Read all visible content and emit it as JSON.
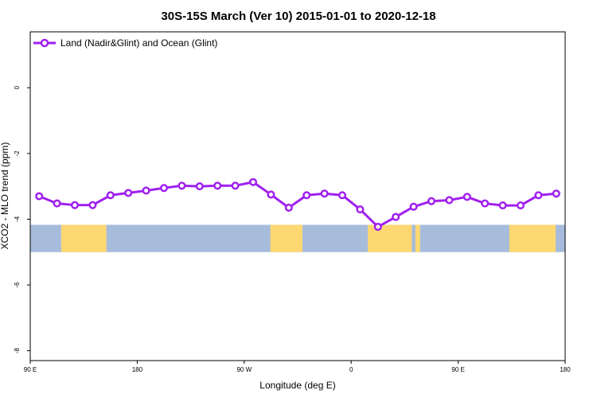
{
  "chart_data": {
    "type": "line",
    "title": "30S-15S March (Ver 10)   2015-01-01 to 2020-12-18",
    "xlabel": "Longitude (deg E)",
    "ylabel": "XCO2 - MLO trend (ppm)",
    "xlim": [
      90,
      540
    ],
    "ylim": [
      -8.3,
      1.7
    ],
    "x_ticks": [
      {
        "value": 90,
        "label": "90 E"
      },
      {
        "value": 180,
        "label": "180"
      },
      {
        "value": 270,
        "label": "90 W"
      },
      {
        "value": 360,
        "label": "0"
      },
      {
        "value": 450,
        "label": "90 E"
      },
      {
        "value": 540,
        "label": "180"
      }
    ],
    "y_ticks": [
      {
        "value": 0,
        "label": "0"
      },
      {
        "value": -2,
        "label": "-2"
      },
      {
        "value": -4,
        "label": "-4"
      },
      {
        "value": -6,
        "label": "-6"
      },
      {
        "value": -8,
        "label": "-8"
      }
    ],
    "grid": false,
    "legend_position": "top-left",
    "series": [
      {
        "name": "Land (Nadir&Glint) and Ocean (Glint)",
        "color": "#a020f0",
        "x": [
          97.5,
          112.5,
          127.5,
          142.5,
          157.5,
          172.5,
          187.5,
          202.5,
          217.5,
          232.5,
          247.5,
          262.5,
          277.5,
          292.5,
          307.5,
          322.5,
          337.5,
          352.5,
          367.5,
          382.5,
          397.5,
          412.5,
          427.5,
          442.5,
          457.5,
          472.5,
          487.5,
          502.5,
          517.5,
          532.5
        ],
        "values": [
          -3.3,
          -3.52,
          -3.57,
          -3.57,
          -3.27,
          -3.2,
          -3.13,
          -3.05,
          -2.98,
          -3.0,
          -2.98,
          -2.98,
          -2.87,
          -3.25,
          -3.65,
          -3.27,
          -3.22,
          -3.27,
          -3.7,
          -4.23,
          -3.93,
          -3.62,
          -3.45,
          -3.42,
          -3.32,
          -3.52,
          -3.58,
          -3.58,
          -3.27,
          -3.22
        ]
      }
    ],
    "map_band": {
      "y_range": [
        -4.17,
        -5.0
      ],
      "ocean_color": "#a7bcdc",
      "land_color": "#fdd872",
      "land_x_ranges": [
        [
          116,
          154
        ],
        [
          292,
          319
        ],
        [
          374,
          411
        ],
        [
          414,
          418
        ],
        [
          493,
          532
        ]
      ]
    }
  }
}
